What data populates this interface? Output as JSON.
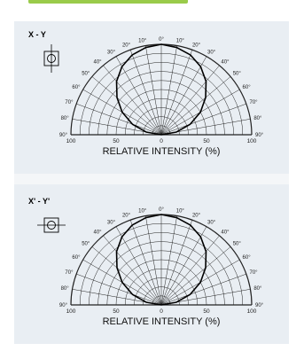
{
  "chart_data": [
    {
      "type": "polar",
      "view_label": "X - Y",
      "xlabel": "RELATIVE INTENSITY  (%)",
      "angle_labels": [
        "0°",
        "10°",
        "20°",
        "30°",
        "40°",
        "50°",
        "60°",
        "70°",
        "80°",
        "90°"
      ],
      "intensity_ticks": [
        "100",
        "50",
        "0",
        "50",
        "100"
      ],
      "intensity_rings": [
        10,
        20,
        30,
        40,
        50,
        60,
        70,
        80,
        90,
        100
      ],
      "angle_range_deg": [
        -90,
        90
      ],
      "series": [
        {
          "angles_deg": [
            -90,
            -80,
            -70,
            -60,
            -50,
            -40,
            -30,
            -20,
            -10,
            0,
            10,
            20,
            30,
            40,
            50,
            60,
            70,
            80,
            90
          ],
          "values": [
            0,
            17,
            34,
            50,
            64,
            77,
            87,
            94,
            98,
            100,
            98,
            94,
            87,
            77,
            64,
            50,
            34,
            17,
            0
          ]
        }
      ]
    },
    {
      "type": "polar",
      "view_label": "X' - Y'",
      "xlabel": "RELATIVE INTENSITY  (%)",
      "angle_labels": [
        "0°",
        "10°",
        "20°",
        "30°",
        "40°",
        "50°",
        "60°",
        "70°",
        "80°",
        "90°"
      ],
      "intensity_ticks": [
        "100",
        "50",
        "0",
        "50",
        "100"
      ],
      "intensity_rings": [
        10,
        20,
        30,
        40,
        50,
        60,
        70,
        80,
        90,
        100
      ],
      "angle_range_deg": [
        -90,
        90
      ],
      "series": [
        {
          "angles_deg": [
            -90,
            -80,
            -70,
            -60,
            -50,
            -40,
            -30,
            -20,
            -10,
            0,
            10,
            20,
            30,
            40,
            50,
            60,
            70,
            80,
            90
          ],
          "values": [
            0,
            17,
            34,
            50,
            64,
            77,
            87,
            94,
            98,
            100,
            98,
            94,
            87,
            77,
            64,
            50,
            34,
            17,
            0
          ]
        }
      ]
    }
  ],
  "style": {
    "accent": "#9acb4a",
    "panel_bg": "#e9eef3",
    "grid": "#222222",
    "curve": "#000000"
  }
}
